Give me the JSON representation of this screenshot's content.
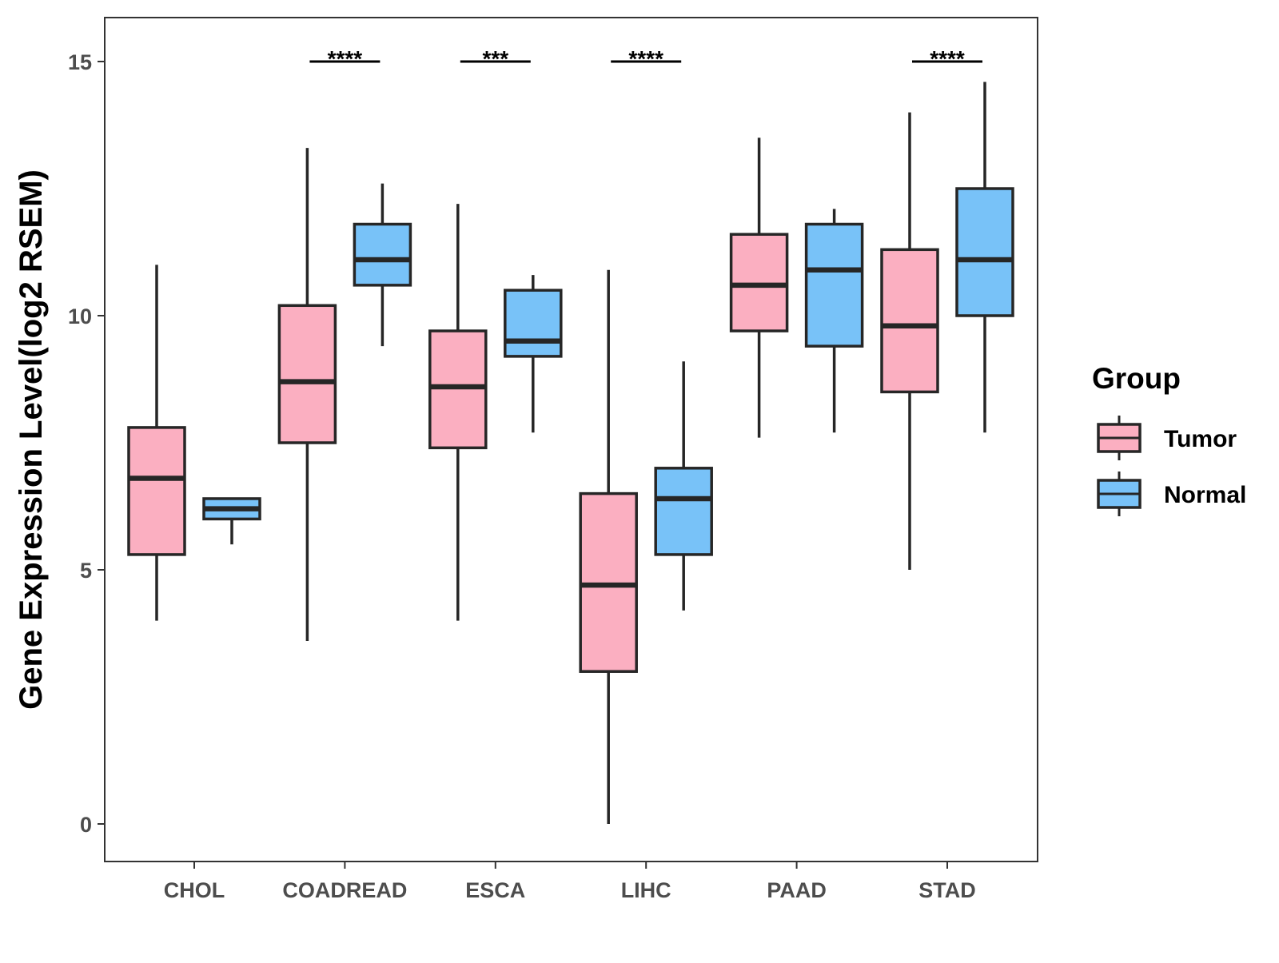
{
  "chart_data": {
    "type": "boxplot",
    "title": "",
    "xlabel": "",
    "ylabel": "Gene Expression Level(log2 RSEM)",
    "ylim": [
      -0.7,
      15.9
    ],
    "yticks": [
      0,
      5,
      10,
      15
    ],
    "grid": false,
    "legend": {
      "title": "Group",
      "placement": "right",
      "entries": [
        "Tumor",
        "Normal"
      ]
    },
    "categories": [
      "CHOL",
      "COADREAD",
      "ESCA",
      "LIHC",
      "PAAD",
      "STAD"
    ],
    "series": [
      {
        "name": "Tumor",
        "color": "#FBAFC1",
        "boxes": [
          {
            "category": "CHOL",
            "whisker_low": 4.0,
            "q1": 5.3,
            "median": 6.8,
            "q3": 7.8,
            "whisker_high": 11.0
          },
          {
            "category": "COADREAD",
            "whisker_low": 3.6,
            "q1": 7.5,
            "median": 8.7,
            "q3": 10.2,
            "whisker_high": 13.3
          },
          {
            "category": "ESCA",
            "whisker_low": 4.0,
            "q1": 7.4,
            "median": 8.6,
            "q3": 9.7,
            "whisker_high": 12.2
          },
          {
            "category": "LIHC",
            "whisker_low": 0.0,
            "q1": 3.0,
            "median": 4.7,
            "q3": 6.5,
            "whisker_high": 10.9
          },
          {
            "category": "PAAD",
            "whisker_low": 7.6,
            "q1": 9.7,
            "median": 10.6,
            "q3": 11.6,
            "whisker_high": 13.5
          },
          {
            "category": "STAD",
            "whisker_low": 5.0,
            "q1": 8.5,
            "median": 9.8,
            "q3": 11.3,
            "whisker_high": 14.0
          }
        ]
      },
      {
        "name": "Normal",
        "color": "#78C2F8",
        "boxes": [
          {
            "category": "CHOL",
            "whisker_low": 5.5,
            "q1": 6.0,
            "median": 6.2,
            "q3": 6.4,
            "whisker_high": 6.4
          },
          {
            "category": "COADREAD",
            "whisker_low": 9.4,
            "q1": 10.6,
            "median": 11.1,
            "q3": 11.8,
            "whisker_high": 12.6
          },
          {
            "category": "ESCA",
            "whisker_low": 7.7,
            "q1": 9.2,
            "median": 9.5,
            "q3": 10.5,
            "whisker_high": 10.8
          },
          {
            "category": "LIHC",
            "whisker_low": 4.2,
            "q1": 5.3,
            "median": 6.4,
            "q3": 7.0,
            "whisker_high": 9.1
          },
          {
            "category": "PAAD",
            "whisker_low": 7.7,
            "q1": 9.4,
            "median": 10.9,
            "q3": 11.8,
            "whisker_high": 12.1
          },
          {
            "category": "STAD",
            "whisker_low": 7.7,
            "q1": 10.0,
            "median": 11.1,
            "q3": 12.5,
            "whisker_high": 14.6
          }
        ]
      }
    ],
    "annotations": [
      {
        "category": "COADREAD",
        "label": "****",
        "y": 15.0
      },
      {
        "category": "ESCA",
        "label": "***",
        "y": 15.0
      },
      {
        "category": "LIHC",
        "label": "****",
        "y": 15.0
      },
      {
        "category": "STAD",
        "label": "****",
        "y": 15.0
      }
    ]
  }
}
